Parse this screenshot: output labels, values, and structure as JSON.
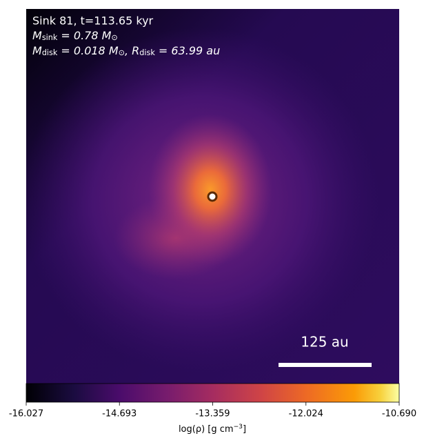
{
  "chart_data": {
    "type": "image",
    "title": "Sink 81, t=113.65 kyr",
    "sink_mass": [
      {
        "text": "M"
      },
      {
        "sub": "sink"
      },
      {
        "text": " = 0.78 M"
      },
      {
        "sub": "⊙"
      }
    ],
    "disk": [
      {
        "text": "M"
      },
      {
        "sub": "disk"
      },
      {
        "text": " = 0.018 M"
      },
      {
        "sub": "⊙"
      },
      {
        "text": ", R"
      },
      {
        "sub": "disk"
      },
      {
        "text": " = 63.99 au"
      }
    ],
    "scale_bar_label": "125 au",
    "colorbar_label": [
      {
        "text": "log(ρ) [g cm"
      },
      {
        "sup": "−3"
      },
      {
        "text": "]"
      }
    ],
    "xlim": [
      -16.027,
      {
        "value": -10.69,
        "label": "-10.690"
      }
    ],
    "xticks": [
      -16.027,
      -14.693,
      -13.359,
      -12.024,
      {
        "value": -10.69,
        "label": "-10.690"
      }
    ]
  }
}
